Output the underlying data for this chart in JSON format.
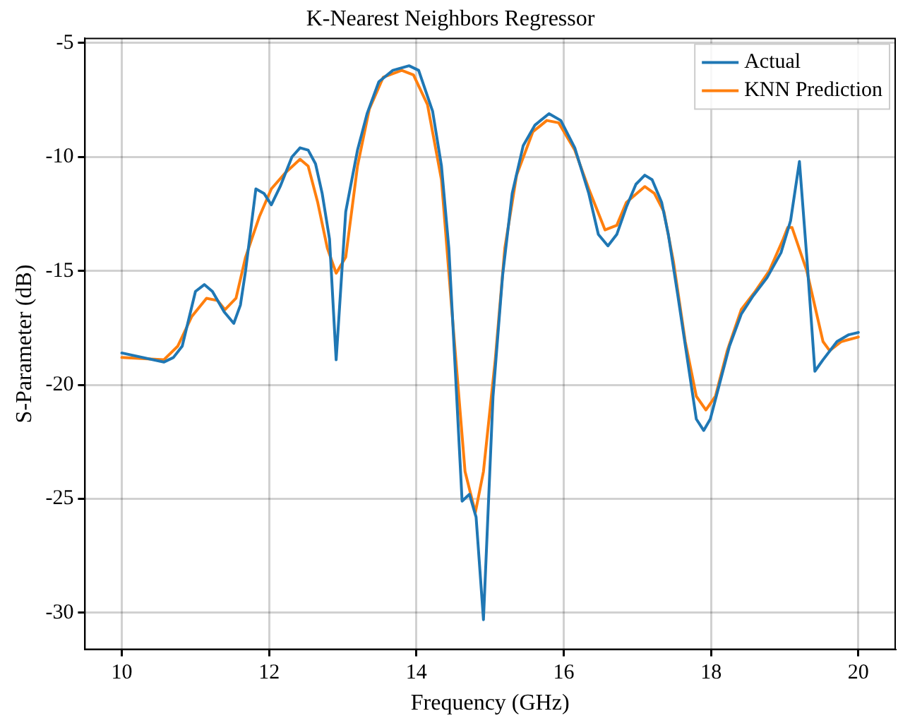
{
  "chart_data": {
    "type": "line",
    "title": "K-Nearest Neighbors Regressor",
    "xlabel": "Frequency (GHz)",
    "ylabel": "S-Parameter (dB)",
    "xlim": [
      9.5,
      20.5
    ],
    "xticks": [
      10,
      12,
      14,
      16,
      18,
      20
    ],
    "ylim": [
      -31.6,
      -4.8
    ],
    "yticks": [
      -30,
      -25,
      -20,
      -15,
      -10,
      -5
    ],
    "grid": true,
    "legend": "top right",
    "marker": "none",
    "line_style": "solid",
    "series": [
      {
        "name": "Actual",
        "color": "#1f77b4",
        "x": [
          10,
          10.57,
          10.7,
          10.82,
          11.0,
          11.12,
          11.23,
          11.39,
          11.52,
          11.61,
          11.68,
          11.82,
          11.93,
          12.03,
          12.15,
          12.31,
          12.42,
          12.53,
          12.63,
          12.72,
          12.82,
          12.91,
          13.04,
          13.2,
          13.33,
          13.49,
          13.68,
          13.9,
          14.03,
          14.22,
          14.34,
          14.44,
          14.53,
          14.62,
          14.72,
          14.81,
          14.91,
          15.04,
          15.17,
          15.3,
          15.45,
          15.61,
          15.8,
          15.96,
          16.15,
          16.34,
          16.47,
          16.6,
          16.72,
          16.85,
          16.98,
          17.1,
          17.2,
          17.33,
          17.42,
          17.55,
          17.68,
          17.8,
          17.9,
          17.99,
          18.12,
          18.25,
          18.41,
          18.57,
          18.76,
          18.95,
          19.08,
          19.2,
          19.3,
          19.41,
          19.52,
          19.71,
          19.87,
          20
        ],
        "values": [
          -18.6,
          -19.0,
          -18.8,
          -18.3,
          -15.9,
          -15.6,
          -15.9,
          -16.8,
          -17.3,
          -16.5,
          -15.0,
          -11.4,
          -11.6,
          -12.1,
          -11.3,
          -10.0,
          -9.6,
          -9.7,
          -10.3,
          -11.6,
          -13.6,
          -18.9,
          -12.4,
          -9.7,
          -8.1,
          -6.7,
          -6.2,
          -6.0,
          -6.2,
          -8.0,
          -10.4,
          -14.0,
          -19.5,
          -25.1,
          -24.8,
          -25.8,
          -30.3,
          -20.5,
          -15.2,
          -11.6,
          -9.5,
          -8.6,
          -8.1,
          -8.4,
          -9.6,
          -11.6,
          -13.4,
          -13.9,
          -13.4,
          -12.2,
          -11.2,
          -10.8,
          -11.0,
          -12.0,
          -13.4,
          -16.1,
          -18.9,
          -21.5,
          -22.0,
          -21.5,
          -19.9,
          -18.3,
          -16.9,
          -16.1,
          -15.3,
          -14.2,
          -12.8,
          -10.2,
          -14.4,
          -19.4,
          -18.9,
          -18.1,
          -17.8,
          -17.7
        ]
      },
      {
        "name": "KNN Prediction",
        "color": "#ff7f0e",
        "x": [
          10,
          10.57,
          10.76,
          10.95,
          11.15,
          11.3,
          11.4,
          11.55,
          11.68,
          11.87,
          12.03,
          12.22,
          12.42,
          12.53,
          12.66,
          12.79,
          12.91,
          13.04,
          13.2,
          13.36,
          13.55,
          13.8,
          13.96,
          14.15,
          14.34,
          14.5,
          14.66,
          14.8,
          14.91,
          15.07,
          15.2,
          15.36,
          15.58,
          15.77,
          15.93,
          16.15,
          16.34,
          16.56,
          16.72,
          16.85,
          17.1,
          17.23,
          17.36,
          17.49,
          17.65,
          17.8,
          17.93,
          18.06,
          18.22,
          18.41,
          18.6,
          18.79,
          18.98,
          19.04,
          19.1,
          19.3,
          19.52,
          19.61,
          19.77,
          20
        ],
        "values": [
          -18.8,
          -18.9,
          -18.3,
          -17.0,
          -16.2,
          -16.3,
          -16.7,
          -16.2,
          -14.4,
          -12.6,
          -11.4,
          -10.7,
          -10.1,
          -10.4,
          -12.0,
          -14.0,
          -15.1,
          -14.4,
          -10.4,
          -7.9,
          -6.5,
          -6.2,
          -6.4,
          -7.7,
          -11.0,
          -17.5,
          -23.8,
          -25.6,
          -23.8,
          -18.9,
          -14.0,
          -10.8,
          -8.9,
          -8.4,
          -8.5,
          -9.7,
          -11.4,
          -13.2,
          -13.0,
          -12.0,
          -11.3,
          -11.6,
          -12.4,
          -14.6,
          -18.1,
          -20.5,
          -21.1,
          -20.5,
          -18.5,
          -16.7,
          -15.9,
          -15.0,
          -13.6,
          -13.1,
          -13.1,
          -15.0,
          -18.1,
          -18.5,
          -18.1,
          -17.9
        ]
      }
    ]
  }
}
